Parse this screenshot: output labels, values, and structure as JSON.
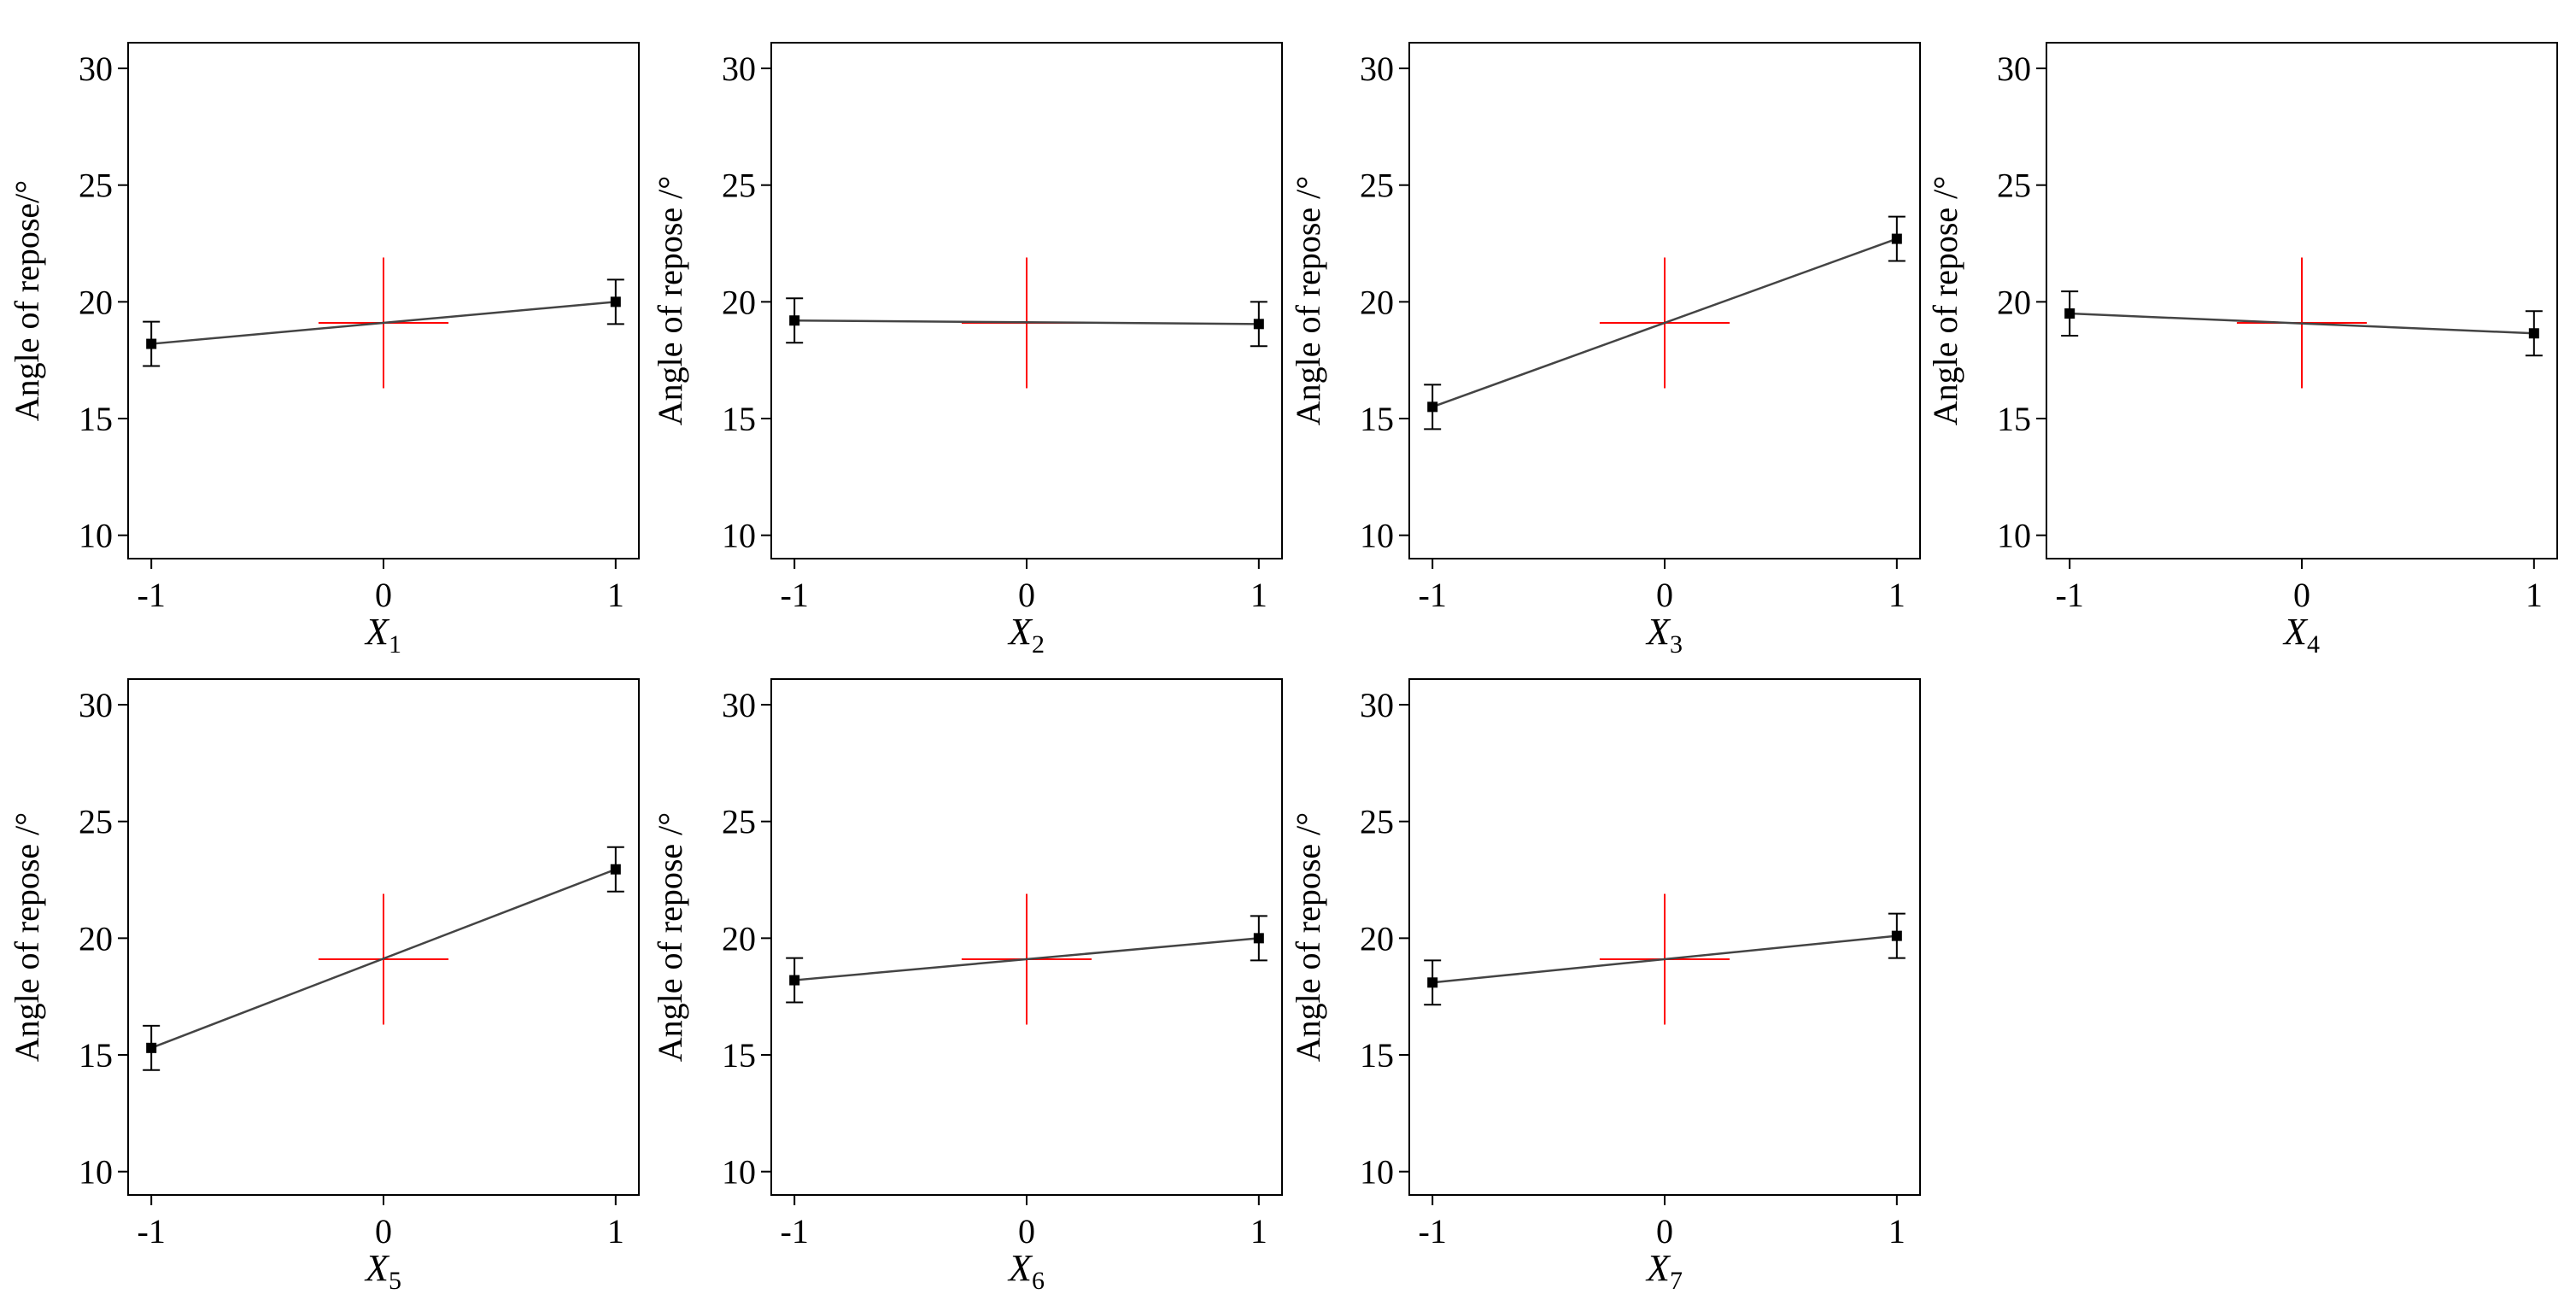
{
  "chart_data": [
    {
      "type": "line",
      "xlabel": "X",
      "xlabel_subscript": "1",
      "ylabel": "Angle of repose/°",
      "x": [
        -1,
        1
      ],
      "values": [
        18.2,
        20.0
      ],
      "error": [
        0.95,
        0.95
      ],
      "center_marker": {
        "x": 0,
        "y": 19.1,
        "y_low": 16.3,
        "y_high": 21.9,
        "x_low": -0.28,
        "x_high": 0.28,
        "color": "#ff0000"
      },
      "xlim": [
        -1.1,
        1.1
      ],
      "ylim": [
        9,
        31.1
      ],
      "x_ticks": [
        "-1",
        "0",
        "1"
      ],
      "y_ticks": [
        "10",
        "15",
        "20",
        "25",
        "30"
      ],
      "grid": false
    },
    {
      "type": "line",
      "xlabel": "X",
      "xlabel_subscript": "2",
      "ylabel": "Angle of repose /°",
      "x": [
        -1,
        1
      ],
      "values": [
        19.2,
        19.05
      ],
      "error": [
        0.95,
        0.95
      ],
      "center_marker": {
        "x": 0,
        "y": 19.1,
        "y_low": 16.3,
        "y_high": 21.9,
        "x_low": -0.28,
        "x_high": 0.28,
        "color": "#ff0000"
      },
      "xlim": [
        -1.1,
        1.1
      ],
      "ylim": [
        9,
        31.1
      ],
      "x_ticks": [
        "-1",
        "0",
        "1"
      ],
      "y_ticks": [
        "10",
        "15",
        "20",
        "25",
        "30"
      ],
      "grid": false
    },
    {
      "type": "line",
      "xlabel": "X",
      "xlabel_subscript": "3",
      "ylabel": "Angle of repose /°",
      "x": [
        -1,
        1
      ],
      "values": [
        15.5,
        22.7
      ],
      "error": [
        0.95,
        0.95
      ],
      "center_marker": {
        "x": 0,
        "y": 19.1,
        "y_low": 16.3,
        "y_high": 21.9,
        "x_low": -0.28,
        "x_high": 0.28,
        "color": "#ff0000"
      },
      "xlim": [
        -1.1,
        1.1
      ],
      "ylim": [
        9,
        31.1
      ],
      "x_ticks": [
        "-1",
        "0",
        "1"
      ],
      "y_ticks": [
        "10",
        "15",
        "20",
        "25",
        "30"
      ],
      "grid": false
    },
    {
      "type": "line",
      "xlabel": "X",
      "xlabel_subscript": "4",
      "ylabel": "Angle of repose /°",
      "x": [
        -1,
        1
      ],
      "values": [
        19.5,
        18.65
      ],
      "error": [
        0.95,
        0.95
      ],
      "center_marker": {
        "x": 0,
        "y": 19.1,
        "y_low": 16.3,
        "y_high": 21.9,
        "x_low": -0.28,
        "x_high": 0.28,
        "color": "#ff0000"
      },
      "xlim": [
        -1.1,
        1.1
      ],
      "ylim": [
        9,
        31.1
      ],
      "x_ticks": [
        "-1",
        "0",
        "1"
      ],
      "y_ticks": [
        "10",
        "15",
        "20",
        "25",
        "30"
      ],
      "grid": false
    },
    {
      "type": "line",
      "xlabel": "X",
      "xlabel_subscript": "5",
      "ylabel": "Angle of repose /°",
      "x": [
        -1,
        1
      ],
      "values": [
        15.3,
        22.95
      ],
      "error": [
        0.95,
        0.95
      ],
      "center_marker": {
        "x": 0,
        "y": 19.1,
        "y_low": 16.3,
        "y_high": 21.9,
        "x_low": -0.28,
        "x_high": 0.28,
        "color": "#ff0000"
      },
      "xlim": [
        -1.1,
        1.1
      ],
      "ylim": [
        9,
        31.1
      ],
      "x_ticks": [
        "-1",
        "0",
        "1"
      ],
      "y_ticks": [
        "10",
        "15",
        "20",
        "25",
        "30"
      ],
      "grid": false
    },
    {
      "type": "line",
      "xlabel": "X",
      "xlabel_subscript": "6",
      "ylabel": "Angle of repose /°",
      "x": [
        -1,
        1
      ],
      "values": [
        18.2,
        20.0
      ],
      "error": [
        0.95,
        0.95
      ],
      "center_marker": {
        "x": 0,
        "y": 19.1,
        "y_low": 16.3,
        "y_high": 21.9,
        "x_low": -0.28,
        "x_high": 0.28,
        "color": "#ff0000"
      },
      "xlim": [
        -1.1,
        1.1
      ],
      "ylim": [
        9,
        31.1
      ],
      "x_ticks": [
        "-1",
        "0",
        "1"
      ],
      "y_ticks": [
        "10",
        "15",
        "20",
        "25",
        "30"
      ],
      "grid": false
    },
    {
      "type": "line",
      "xlabel": "X",
      "xlabel_subscript": "7",
      "ylabel": "Angle of repose /°",
      "x": [
        -1,
        1
      ],
      "values": [
        18.1,
        20.1
      ],
      "error": [
        0.95,
        0.95
      ],
      "center_marker": {
        "x": 0,
        "y": 19.1,
        "y_low": 16.3,
        "y_high": 21.9,
        "x_low": -0.28,
        "x_high": 0.28,
        "color": "#ff0000"
      },
      "xlim": [
        -1.1,
        1.1
      ],
      "ylim": [
        9,
        31.1
      ],
      "x_ticks": [
        "-1",
        "0",
        "1"
      ],
      "y_ticks": [
        "10",
        "15",
        "20",
        "25",
        "30"
      ],
      "grid": false
    }
  ],
  "colors": {
    "line": "#444444",
    "marker": "#000000",
    "center": "#ff0000",
    "axis": "#000000"
  }
}
